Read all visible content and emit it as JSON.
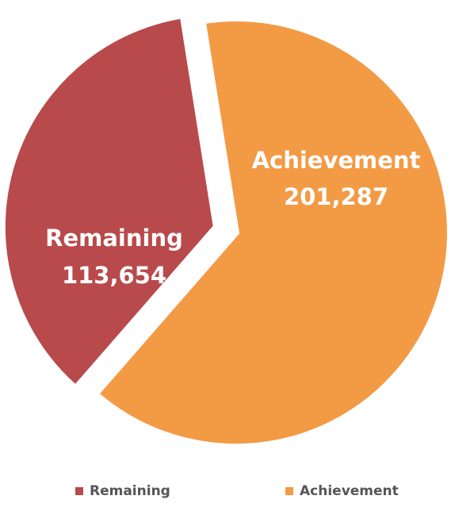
{
  "chart_data": {
    "type": "pie",
    "categories": [
      "Remaining",
      "Achievement"
    ],
    "values": [
      113654,
      201287
    ],
    "value_labels": [
      "113,654",
      "201,287"
    ],
    "colors": [
      "#b84a4c",
      "#f39a45"
    ],
    "legend_placement": "bottom",
    "legend": [
      "Remaining",
      "Achievement"
    ]
  }
}
